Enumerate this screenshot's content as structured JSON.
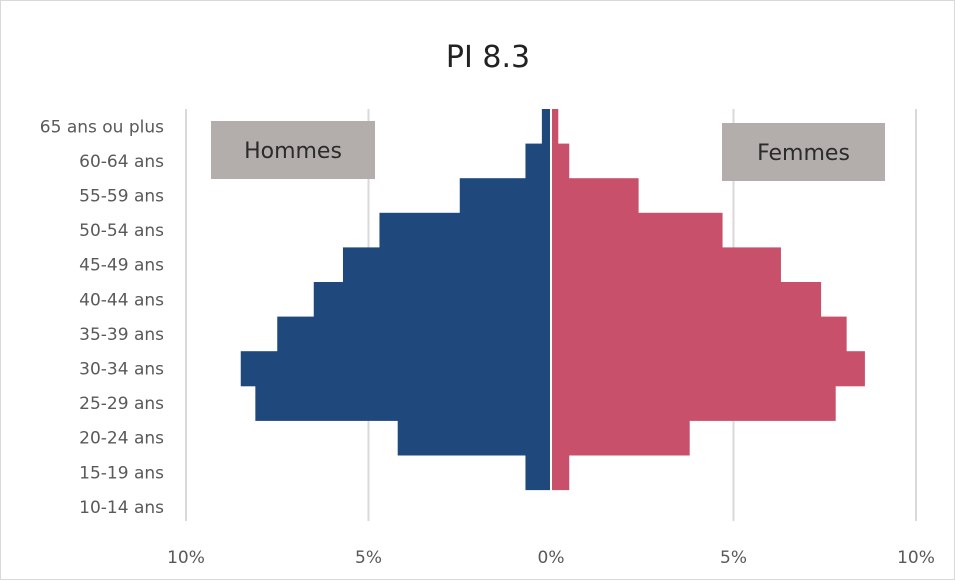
{
  "chart_data": {
    "type": "bar",
    "orientation": "horizontal",
    "subtype": "population-pyramid",
    "title": "PI 8.3",
    "categories": [
      "10-14 ans",
      "15-19 ans",
      "20-24 ans",
      "25-29 ans",
      "30-34 ans",
      "35-39 ans",
      "40-44 ans",
      "45-49 ans",
      "50-54 ans",
      "55-59 ans",
      "60-64 ans",
      "65 ans ou plus"
    ],
    "series": [
      {
        "name": "Hommes",
        "color": "#1f487d",
        "side": "left",
        "values": [
          0.0,
          0.7,
          4.2,
          8.1,
          8.5,
          7.5,
          6.5,
          5.7,
          4.7,
          2.5,
          0.7,
          0.25
        ]
      },
      {
        "name": "Femmes",
        "color": "#c8506a",
        "side": "right",
        "values": [
          0.0,
          0.5,
          3.8,
          7.8,
          8.6,
          8.1,
          7.4,
          6.3,
          4.7,
          2.4,
          0.5,
          0.2
        ]
      }
    ],
    "x_ticks": [
      {
        "value": -10,
        "label": "10%"
      },
      {
        "value": -5,
        "label": "5%"
      },
      {
        "value": 0,
        "label": "0%"
      },
      {
        "value": 5,
        "label": "5%"
      },
      {
        "value": 10,
        "label": "10%"
      }
    ],
    "xlim": [
      -10,
      10
    ],
    "grid": "vertical",
    "legend": {
      "placement": "inside-top",
      "items": [
        {
          "name": "Hommes",
          "position": "top-left",
          "box_color": "#b3aeab"
        },
        {
          "name": "Femmes",
          "position": "top-right",
          "box_color": "#b3aeab"
        }
      ]
    },
    "gridline_color": "#d9d9d9",
    "center_line_color": "#ffffff"
  }
}
